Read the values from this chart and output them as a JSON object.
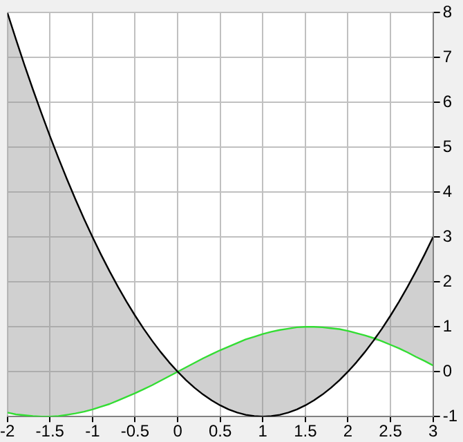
{
  "chart_data": {
    "type": "line",
    "x": [
      -2,
      -1.9,
      -1.8,
      -1.7,
      -1.6,
      -1.5,
      -1.4,
      -1.3,
      -1.2,
      -1.1,
      -1,
      -0.9,
      -0.8,
      -0.7,
      -0.6,
      -0.5,
      -0.4,
      -0.3,
      -0.2,
      -0.1,
      0,
      0.1,
      0.2,
      0.3,
      0.4,
      0.5,
      0.6,
      0.7,
      0.8,
      0.9,
      1,
      1.1,
      1.2,
      1.3,
      1.4,
      1.5,
      1.6,
      1.7,
      1.8,
      1.9,
      2,
      2.1,
      2.2,
      2.3,
      2.4,
      2.5,
      2.6,
      2.7,
      2.8,
      2.9,
      3
    ],
    "series": [
      {
        "color": "#000000",
        "values": [
          8,
          7.41,
          6.84,
          6.29,
          5.76,
          5.25,
          4.76,
          4.29,
          3.84,
          3.41,
          3,
          2.61,
          2.24,
          1.89,
          1.56,
          1.25,
          0.96,
          0.69,
          0.44,
          0.21,
          0,
          -0.19,
          -0.36,
          -0.51,
          -0.64,
          -0.75,
          -0.84,
          -0.91,
          -0.96,
          -0.99,
          -1,
          -0.99,
          -0.96,
          -0.91,
          -0.84,
          -0.75,
          -0.64,
          -0.51,
          -0.36,
          -0.19,
          0,
          0.21,
          0.44,
          0.69,
          0.96,
          1.25,
          1.56,
          1.89,
          2.24,
          2.61,
          3
        ]
      },
      {
        "color": "#33dd33",
        "values": [
          -0.91,
          -0.95,
          -0.97,
          -0.99,
          -1,
          -1,
          -0.99,
          -0.96,
          -0.93,
          -0.89,
          -0.84,
          -0.78,
          -0.72,
          -0.64,
          -0.56,
          -0.48,
          -0.39,
          -0.3,
          -0.2,
          -0.1,
          0,
          0.1,
          0.2,
          0.3,
          0.39,
          0.48,
          0.56,
          0.64,
          0.72,
          0.78,
          0.84,
          0.89,
          0.93,
          0.96,
          0.99,
          1,
          1,
          0.99,
          0.97,
          0.95,
          0.91,
          0.86,
          0.81,
          0.75,
          0.68,
          0.6,
          0.52,
          0.43,
          0.33,
          0.24,
          0.14
        ],
        "lower": [
          -0.91,
          -0.95,
          -0.97,
          -0.99,
          -1,
          -1,
          -0.99,
          -0.96,
          -0.93,
          -0.89,
          -0.84,
          -0.78,
          -0.72,
          -0.64,
          -0.56,
          -0.48,
          -0.39,
          -0.3,
          -0.2,
          -0.1,
          0,
          -0.19,
          -0.36,
          -0.51,
          -0.64,
          -0.75,
          -0.84,
          -0.91,
          -0.96,
          -0.99,
          -1,
          -0.99,
          -0.96,
          -0.91,
          -0.84,
          -0.75,
          -0.64,
          -0.51,
          -0.36,
          -0.19,
          0,
          0.21,
          0.44,
          0.69,
          0.68,
          0.6,
          0.52,
          0.43,
          0.33,
          0.24,
          0.14
        ],
        "upper": [
          8,
          7.41,
          6.84,
          6.29,
          5.76,
          5.25,
          4.76,
          4.29,
          3.84,
          3.41,
          3,
          2.61,
          2.24,
          1.89,
          1.56,
          1.25,
          0.96,
          0.69,
          0.44,
          0.21,
          0,
          0.1,
          0.2,
          0.3,
          0.39,
          0.48,
          0.56,
          0.64,
          0.72,
          0.78,
          0.84,
          0.89,
          0.93,
          0.96,
          0.99,
          1,
          1,
          0.99,
          0.97,
          0.95,
          0.91,
          0.86,
          0.81,
          0.75,
          0.96,
          1.25,
          1.56,
          1.89,
          2.24,
          2.61,
          3
        ]
      }
    ],
    "xlim": [
      -2,
      3
    ],
    "xticks": [
      -2,
      -1.5,
      -1,
      -0.5,
      0,
      0.5,
      1,
      1.5,
      2,
      2.5,
      3
    ],
    "ylim": [
      -1,
      8
    ],
    "yticks": [
      -1,
      0,
      1,
      2,
      3,
      4,
      5,
      6,
      7,
      8
    ],
    "grid": true,
    "legend": false,
    "marker": "none",
    "line_style": "solid"
  }
}
